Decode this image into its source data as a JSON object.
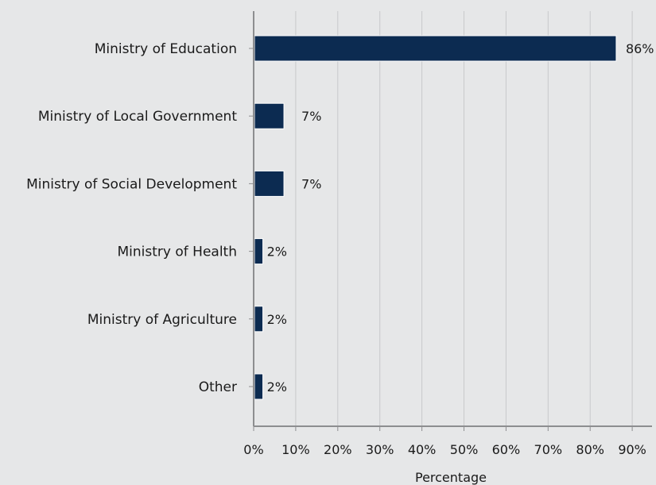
{
  "chart_data": {
    "type": "bar",
    "orientation": "horizontal",
    "categories": [
      "Ministry of Education",
      "Ministry of Local Government",
      "Ministry of Social Development",
      "Ministry of Health",
      "Ministry of Agriculture",
      "Other"
    ],
    "values": [
      86,
      7,
      7,
      2,
      2,
      2
    ],
    "value_labels": [
      "86%",
      "7%",
      "7%",
      "2%",
      "2%",
      "2%"
    ],
    "xlabel": "Percentage",
    "xlim": [
      0,
      90
    ],
    "xticks": [
      0,
      10,
      20,
      30,
      40,
      50,
      60,
      70,
      80,
      90
    ],
    "xtick_labels": [
      "0%",
      "10%",
      "20%",
      "30%",
      "40%",
      "50%",
      "60%",
      "70%",
      "80%",
      "90%"
    ],
    "grid": "vertical",
    "bar_color": "#0c2b51",
    "background_color": "#e6e7e8",
    "grid_color": "#c8c9cb",
    "axis_color": "#8d8e90"
  }
}
